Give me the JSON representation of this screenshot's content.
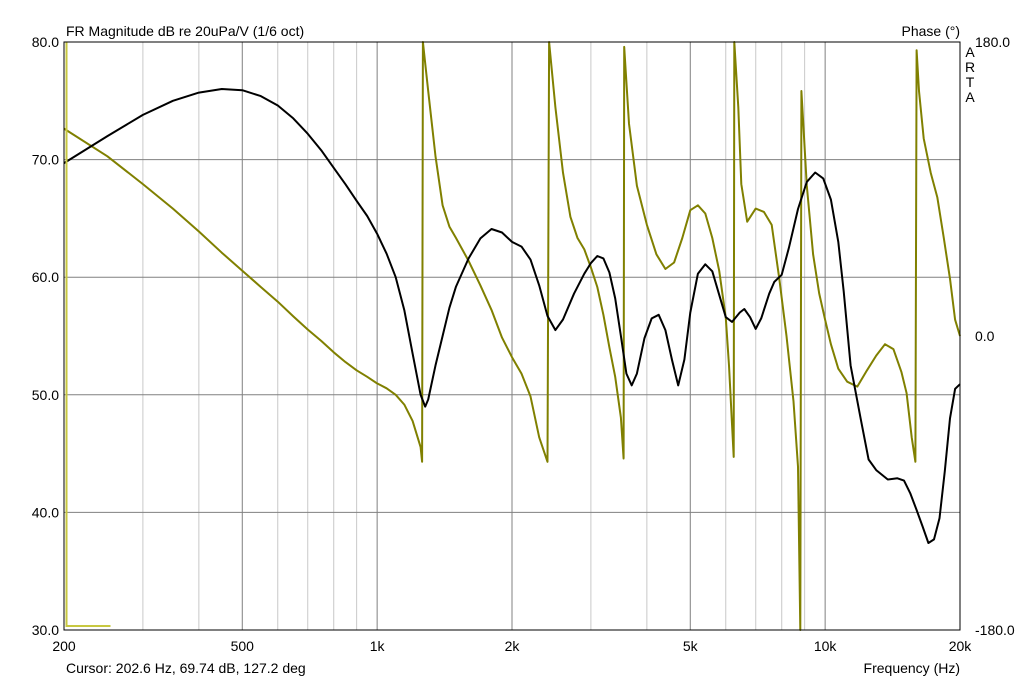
{
  "chart_data": {
    "type": "line",
    "title": "FR Magnitude dB re 20uPa/V (1/6 oct)",
    "right_axis_title": "Phase (°)",
    "xlabel": "Frequency (Hz)",
    "cursor_readout": "Cursor: 202.6 Hz, 69.74 dB, 127.2 deg",
    "watermark": "ARTA",
    "x_scale": "log",
    "xlim": [
      200,
      20000
    ],
    "ylim": [
      30,
      80
    ],
    "y2lim": [
      -180,
      180
    ],
    "grid": true,
    "x_tick_labels": [
      {
        "value": 200,
        "label": "200"
      },
      {
        "value": 500,
        "label": "500"
      },
      {
        "value": 1000,
        "label": "1k"
      },
      {
        "value": 2000,
        "label": "2k"
      },
      {
        "value": 5000,
        "label": "5k"
      },
      {
        "value": 10000,
        "label": "10k"
      },
      {
        "value": 20000,
        "label": "20k"
      }
    ],
    "x_minor_grid": [
      300,
      400,
      600,
      700,
      800,
      900,
      3000,
      4000,
      6000,
      7000,
      8000,
      9000
    ],
    "y_ticks": [
      {
        "value": 80,
        "label": "80.0"
      },
      {
        "value": 70,
        "label": "70.0"
      },
      {
        "value": 60,
        "label": "60.0"
      },
      {
        "value": 50,
        "label": "50.0"
      },
      {
        "value": 40,
        "label": "40.0"
      },
      {
        "value": 30,
        "label": "30.0"
      }
    ],
    "y2_ticks": [
      {
        "value": 180,
        "label": "180.0"
      },
      {
        "value": 0,
        "label": "0.0"
      },
      {
        "value": -180,
        "label": "-180.0"
      }
    ],
    "colors": {
      "magnitude": "#000000",
      "phase": "#808000",
      "grid_major": "#808080",
      "grid_minor": "#c8c8c8",
      "cursor": "#c8c840"
    },
    "cursor_x": 202.6,
    "series": [
      {
        "axis": "left",
        "points": [
          [
            200,
            69.7
          ],
          [
            250,
            72.0
          ],
          [
            300,
            73.8
          ],
          [
            350,
            75.0
          ],
          [
            400,
            75.7
          ],
          [
            450,
            76.0
          ],
          [
            500,
            75.9
          ],
          [
            550,
            75.4
          ],
          [
            600,
            74.6
          ],
          [
            650,
            73.5
          ],
          [
            700,
            72.2
          ],
          [
            750,
            70.8
          ],
          [
            800,
            69.3
          ],
          [
            850,
            67.9
          ],
          [
            900,
            66.5
          ],
          [
            950,
            65.2
          ],
          [
            1000,
            63.7
          ],
          [
            1050,
            62.0
          ],
          [
            1100,
            60.0
          ],
          [
            1150,
            57.2
          ],
          [
            1200,
            53.5
          ],
          [
            1250,
            50.0
          ],
          [
            1280,
            49.0
          ],
          [
            1300,
            49.6
          ],
          [
            1350,
            52.5
          ],
          [
            1400,
            55.0
          ],
          [
            1450,
            57.4
          ],
          [
            1500,
            59.2
          ],
          [
            1600,
            61.6
          ],
          [
            1700,
            63.3
          ],
          [
            1800,
            64.1
          ],
          [
            1900,
            63.8
          ],
          [
            2000,
            63.0
          ],
          [
            2100,
            62.6
          ],
          [
            2200,
            61.5
          ],
          [
            2300,
            59.3
          ],
          [
            2400,
            56.7
          ],
          [
            2500,
            55.5
          ],
          [
            2600,
            56.4
          ],
          [
            2750,
            58.6
          ],
          [
            2900,
            60.3
          ],
          [
            3000,
            61.2
          ],
          [
            3100,
            61.8
          ],
          [
            3200,
            61.6
          ],
          [
            3300,
            60.4
          ],
          [
            3400,
            58.2
          ],
          [
            3500,
            55.0
          ],
          [
            3600,
            51.8
          ],
          [
            3700,
            50.8
          ],
          [
            3800,
            51.8
          ],
          [
            3950,
            54.8
          ],
          [
            4100,
            56.5
          ],
          [
            4250,
            56.8
          ],
          [
            4400,
            55.5
          ],
          [
            4550,
            53.0
          ],
          [
            4700,
            50.8
          ],
          [
            4850,
            53.0
          ],
          [
            5000,
            57.0
          ],
          [
            5200,
            60.3
          ],
          [
            5400,
            61.1
          ],
          [
            5600,
            60.5
          ],
          [
            5800,
            58.5
          ],
          [
            6000,
            56.6
          ],
          [
            6200,
            56.2
          ],
          [
            6450,
            57.0
          ],
          [
            6600,
            57.3
          ],
          [
            6800,
            56.6
          ],
          [
            7000,
            55.6
          ],
          [
            7200,
            56.5
          ],
          [
            7500,
            58.6
          ],
          [
            7700,
            59.6
          ],
          [
            8000,
            60.2
          ],
          [
            8300,
            62.5
          ],
          [
            8700,
            65.8
          ],
          [
            9100,
            68.1
          ],
          [
            9500,
            68.9
          ],
          [
            9900,
            68.4
          ],
          [
            10300,
            66.6
          ],
          [
            10700,
            63.0
          ],
          [
            11000,
            58.8
          ],
          [
            11400,
            52.5
          ],
          [
            12000,
            48.0
          ],
          [
            12500,
            44.5
          ],
          [
            13000,
            43.6
          ],
          [
            13800,
            42.8
          ],
          [
            14500,
            42.9
          ],
          [
            15000,
            42.7
          ],
          [
            15500,
            41.6
          ],
          [
            16000,
            40.2
          ],
          [
            16500,
            38.8
          ],
          [
            17000,
            37.4
          ],
          [
            17500,
            37.7
          ],
          [
            18000,
            39.5
          ],
          [
            18500,
            43.5
          ],
          [
            19000,
            48.0
          ],
          [
            19500,
            50.5
          ],
          [
            20000,
            50.9
          ]
        ]
      },
      {
        "axis": "right",
        "points": [
          [
            200,
            127
          ],
          [
            250,
            110
          ],
          [
            300,
            93
          ],
          [
            350,
            78
          ],
          [
            400,
            64
          ],
          [
            450,
            51
          ],
          [
            500,
            40
          ],
          [
            550,
            30
          ],
          [
            600,
            21
          ],
          [
            650,
            12
          ],
          [
            700,
            4
          ],
          [
            750,
            -3
          ],
          [
            800,
            -10
          ],
          [
            850,
            -16
          ],
          [
            900,
            -21
          ],
          [
            950,
            -25
          ],
          [
            1000,
            -29
          ],
          [
            1050,
            -32
          ],
          [
            1100,
            -36
          ],
          [
            1150,
            -42
          ],
          [
            1200,
            -52
          ],
          [
            1250,
            -68
          ],
          [
            1260,
            -77
          ],
          [
            1265,
            180
          ],
          [
            1300,
            150
          ],
          [
            1350,
            110
          ],
          [
            1400,
            80
          ],
          [
            1450,
            67
          ],
          [
            1500,
            60
          ],
          [
            1600,
            46
          ],
          [
            1700,
            31
          ],
          [
            1800,
            16
          ],
          [
            1900,
            -1
          ],
          [
            2000,
            -13
          ],
          [
            2100,
            -23
          ],
          [
            2200,
            -37
          ],
          [
            2300,
            -62
          ],
          [
            2400,
            -77
          ],
          [
            2420,
            180
          ],
          [
            2500,
            140
          ],
          [
            2600,
            100
          ],
          [
            2700,
            73
          ],
          [
            2800,
            60
          ],
          [
            2900,
            53
          ],
          [
            3000,
            42
          ],
          [
            3100,
            30
          ],
          [
            3200,
            13
          ],
          [
            3300,
            -7
          ],
          [
            3400,
            -25
          ],
          [
            3500,
            -50
          ],
          [
            3550,
            -75
          ],
          [
            3560,
            177
          ],
          [
            3650,
            130
          ],
          [
            3800,
            92
          ],
          [
            4000,
            68
          ],
          [
            4200,
            50
          ],
          [
            4400,
            41
          ],
          [
            4600,
            45
          ],
          [
            4800,
            60
          ],
          [
            5000,
            77
          ],
          [
            5200,
            80
          ],
          [
            5400,
            75
          ],
          [
            5600,
            60
          ],
          [
            5800,
            40
          ],
          [
            6000,
            11
          ],
          [
            6100,
            -18
          ],
          [
            6200,
            -55
          ],
          [
            6250,
            -74
          ],
          [
            6270,
            180
          ],
          [
            6400,
            140
          ],
          [
            6500,
            93
          ],
          [
            6700,
            70
          ],
          [
            7000,
            78
          ],
          [
            7300,
            76
          ],
          [
            7600,
            68
          ],
          [
            7900,
            35
          ],
          [
            8200,
            0
          ],
          [
            8500,
            -40
          ],
          [
            8700,
            -80
          ],
          [
            8800,
            -180
          ],
          [
            8850,
            150
          ],
          [
            9100,
            92
          ],
          [
            9400,
            50
          ],
          [
            9700,
            26
          ],
          [
            10000,
            10
          ],
          [
            10300,
            -5
          ],
          [
            10700,
            -20
          ],
          [
            11200,
            -28
          ],
          [
            11800,
            -31
          ],
          [
            12400,
            -21
          ],
          [
            13000,
            -12
          ],
          [
            13600,
            -5
          ],
          [
            14200,
            -8
          ],
          [
            14800,
            -22
          ],
          [
            15200,
            -35
          ],
          [
            15600,
            -62
          ],
          [
            15900,
            -77
          ],
          [
            16000,
            175
          ],
          [
            16200,
            150
          ],
          [
            16600,
            121
          ],
          [
            17200,
            100
          ],
          [
            17800,
            85
          ],
          [
            18400,
            60
          ],
          [
            19000,
            35
          ],
          [
            19500,
            10
          ],
          [
            20000,
            0
          ]
        ]
      }
    ]
  }
}
